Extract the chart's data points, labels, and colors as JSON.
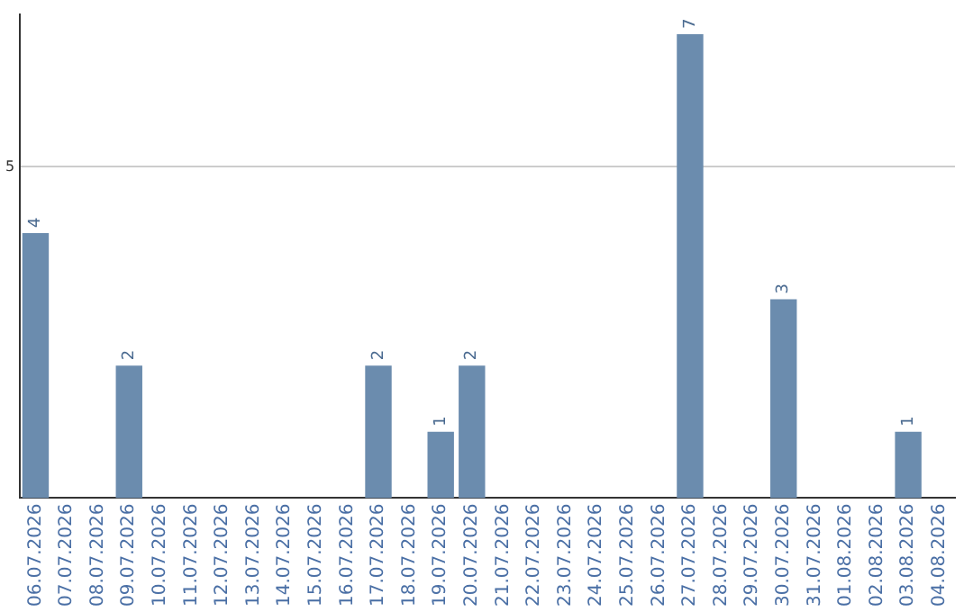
{
  "chart_data": {
    "type": "bar",
    "categories": [
      "06.07.2026",
      "07.07.2026",
      "08.07.2026",
      "09.07.2026",
      "10.07.2026",
      "11.07.2026",
      "12.07.2026",
      "13.07.2026",
      "14.07.2026",
      "15.07.2026",
      "16.07.2026",
      "17.07.2026",
      "18.07.2026",
      "19.07.2026",
      "20.07.2026",
      "21.07.2026",
      "22.07.2026",
      "23.07.2026",
      "24.07.2026",
      "25.07.2026",
      "26.07.2026",
      "27.07.2026",
      "28.07.2026",
      "29.07.2026",
      "30.07.2026",
      "31.07.2026",
      "01.08.2026",
      "02.08.2026",
      "03.08.2026",
      "04.08.2026"
    ],
    "values": [
      4,
      null,
      null,
      2,
      null,
      null,
      null,
      null,
      null,
      null,
      null,
      2,
      null,
      1,
      2,
      null,
      null,
      null,
      null,
      null,
      null,
      7,
      null,
      null,
      3,
      null,
      null,
      null,
      1,
      null
    ],
    "color": "#6b8cae",
    "ylim": [
      0,
      7.3
    ],
    "yticks": [
      5
    ],
    "grid": "y",
    "legend": false,
    "data_labels": true
  }
}
